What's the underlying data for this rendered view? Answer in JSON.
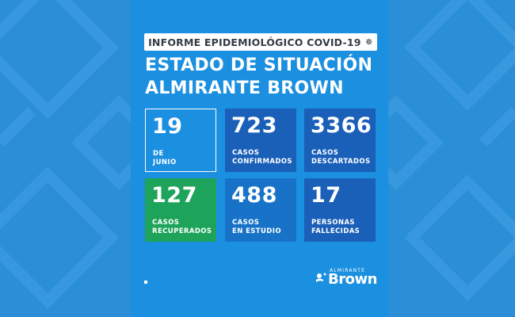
{
  "header": {
    "pill_text": "INFORME EPIDEMIOLÓGICO COVID-19",
    "pill_icon": "virus-icon"
  },
  "title": {
    "line1": "ESTADO DE SITUACIÓN",
    "line2": "ALMIRANTE BROWN"
  },
  "tiles": [
    {
      "value": "19",
      "label": "DE\nJUNIO",
      "color": "transparent"
    },
    {
      "value": "723",
      "label": "CASOS\nCONFIRMADOS",
      "color": "#1a5fb8"
    },
    {
      "value": "3366",
      "label": "CASOS\nDESCARTADOS",
      "color": "#1a5fb8"
    },
    {
      "value": "127",
      "label": "CASOS\nRECUPERADOS",
      "color": "#1ea35a"
    },
    {
      "value": "488",
      "label": "CASOS\nEN ESTUDIO",
      "color": "#1873c8"
    },
    {
      "value": "17",
      "label": "PERSONAS\nFALLECIDAS",
      "color": "#1a5fb8"
    }
  ],
  "logo": {
    "small_text": "ALMIRANTE",
    "big_text": "Brown"
  },
  "colors": {
    "background": "#2a8fd6",
    "card": "#1b8fe0",
    "dark_tile": "#1a5fb8",
    "green_tile": "#1ea35a"
  }
}
